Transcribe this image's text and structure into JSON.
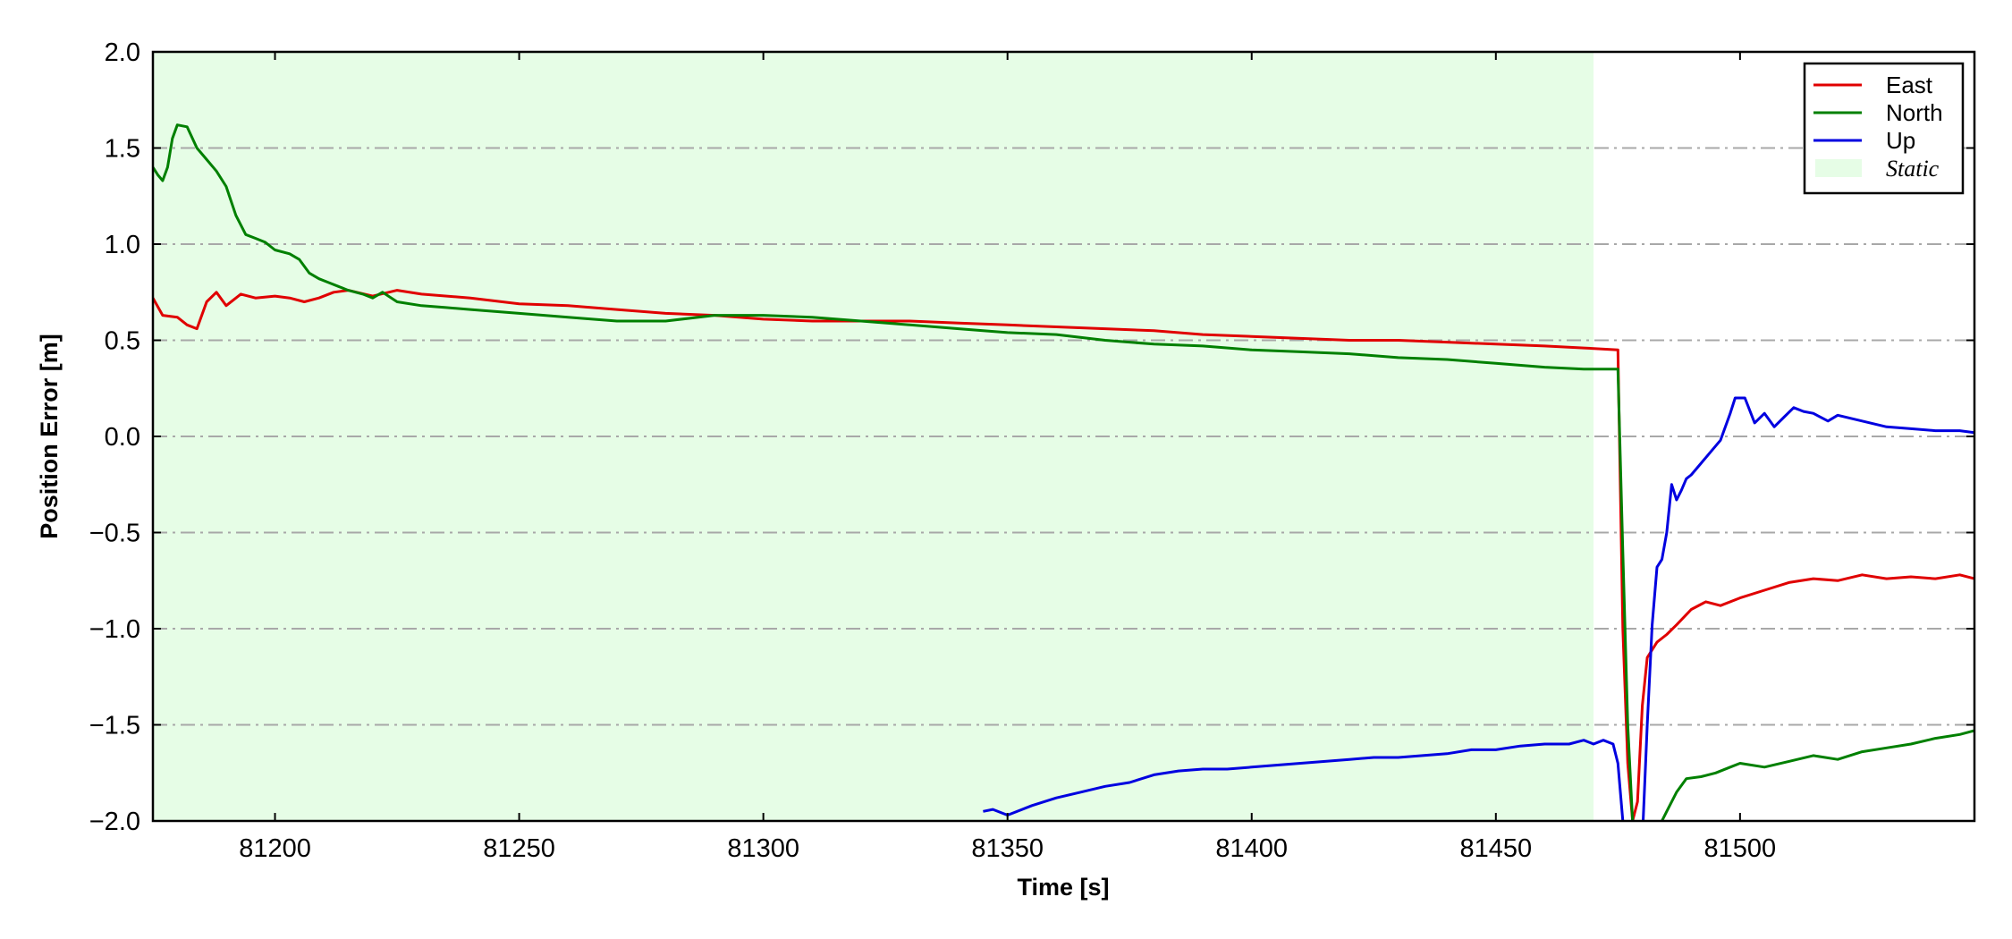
{
  "chart_data": {
    "type": "line",
    "xlabel": "Time [s]",
    "ylabel": "Position Error [m]",
    "xlim": [
      81175,
      81548
    ],
    "ylim": [
      -2.0,
      2.0
    ],
    "x_ticks": [
      81200,
      81250,
      81300,
      81350,
      81400,
      81450,
      81500
    ],
    "x_tick_labels": [
      "81200",
      "81250",
      "81300",
      "81350",
      "81400",
      "81450",
      "81500"
    ],
    "y_ticks": [
      2.0,
      1.5,
      1.0,
      0.5,
      0.0,
      -0.5,
      -1.0,
      -1.5,
      -2.0
    ],
    "y_tick_labels": [
      "2.0",
      "1.5",
      "1.0",
      "0.5",
      "0.0",
      "−0.5",
      "−1.0",
      "−1.5",
      "−2.0"
    ],
    "grid": "horizontal dash-dot",
    "legend_position": "top-right",
    "static_region": {
      "label": "Static",
      "x_start": 81175,
      "x_end": 81470,
      "color": "#e6fde6"
    },
    "series": [
      {
        "name": "East",
        "color": "#e00000",
        "x": [
          81175,
          81177,
          81180,
          81182,
          81184,
          81186,
          81188,
          81190,
          81193,
          81196,
          81200,
          81203,
          81206,
          81209,
          81212,
          81215,
          81220,
          81225,
          81230,
          81240,
          81250,
          81260,
          81270,
          81280,
          81290,
          81300,
          81310,
          81320,
          81330,
          81340,
          81350,
          81360,
          81370,
          81380,
          81390,
          81400,
          81410,
          81420,
          81430,
          81440,
          81450,
          81460,
          81468,
          81475,
          81476,
          81477,
          81478,
          81479,
          81480,
          81481,
          81483,
          81485,
          81487,
          81490,
          81493,
          81496,
          81500,
          81505,
          81510,
          81515,
          81520,
          81525,
          81530,
          81535,
          81540,
          81545,
          81548
        ],
        "y": [
          0.72,
          0.63,
          0.62,
          0.58,
          0.56,
          0.7,
          0.75,
          0.68,
          0.74,
          0.72,
          0.73,
          0.72,
          0.7,
          0.72,
          0.75,
          0.76,
          0.73,
          0.76,
          0.74,
          0.72,
          0.69,
          0.68,
          0.66,
          0.64,
          0.63,
          0.61,
          0.6,
          0.6,
          0.6,
          0.59,
          0.58,
          0.57,
          0.56,
          0.55,
          0.53,
          0.52,
          0.51,
          0.5,
          0.5,
          0.49,
          0.48,
          0.47,
          0.46,
          0.45,
          -1.0,
          -1.7,
          -2.0,
          -1.9,
          -1.4,
          -1.15,
          -1.07,
          -1.03,
          -0.98,
          -0.9,
          -0.86,
          -0.88,
          -0.84,
          -0.8,
          -0.76,
          -0.74,
          -0.75,
          -0.72,
          -0.74,
          -0.73,
          -0.74,
          -0.72,
          -0.74
        ]
      },
      {
        "name": "North",
        "color": "#008000",
        "x": [
          81175,
          81176,
          81177,
          81178,
          81179,
          81180,
          81182,
          81184,
          81186,
          81188,
          81190,
          81192,
          81194,
          81196,
          81198,
          81200,
          81203,
          81205,
          81207,
          81209,
          81211,
          81213,
          81215,
          81218,
          81220,
          81222,
          81225,
          81230,
          81235,
          81240,
          81250,
          81260,
          81270,
          81280,
          81290,
          81300,
          81310,
          81320,
          81330,
          81340,
          81350,
          81360,
          81370,
          81380,
          81390,
          81400,
          81410,
          81420,
          81430,
          81440,
          81450,
          81460,
          81468,
          81475,
          81476,
          81477,
          81478,
          81479,
          81480,
          81482,
          81485,
          81487,
          81489,
          81492,
          81495,
          81498,
          81500,
          81505,
          81510,
          81515,
          81520,
          81525,
          81530,
          81535,
          81540,
          81545,
          81548
        ],
        "y": [
          1.4,
          1.36,
          1.33,
          1.4,
          1.55,
          1.62,
          1.61,
          1.5,
          1.44,
          1.38,
          1.3,
          1.15,
          1.05,
          1.03,
          1.01,
          0.97,
          0.95,
          0.92,
          0.85,
          0.82,
          0.8,
          0.78,
          0.76,
          0.74,
          0.72,
          0.75,
          0.7,
          0.68,
          0.67,
          0.66,
          0.64,
          0.62,
          0.6,
          0.6,
          0.63,
          0.63,
          0.62,
          0.6,
          0.58,
          0.56,
          0.54,
          0.53,
          0.5,
          0.48,
          0.47,
          0.45,
          0.44,
          0.43,
          0.41,
          0.4,
          0.38,
          0.36,
          0.35,
          0.35,
          -0.6,
          -1.5,
          -2.0,
          -2.1,
          -2.2,
          -2.1,
          -1.95,
          -1.85,
          -1.78,
          -1.77,
          -1.75,
          -1.72,
          -1.7,
          -1.72,
          -1.69,
          -1.66,
          -1.68,
          -1.64,
          -1.62,
          -1.6,
          -1.57,
          -1.55,
          -1.53
        ]
      },
      {
        "name": "Up",
        "color": "#0000e0",
        "x": [
          81345,
          81347,
          81350,
          81355,
          81360,
          81365,
          81370,
          81375,
          81380,
          81385,
          81390,
          81395,
          81400,
          81405,
          81410,
          81415,
          81420,
          81425,
          81430,
          81435,
          81440,
          81445,
          81450,
          81455,
          81460,
          81465,
          81468,
          81470,
          81472,
          81474,
          81475,
          81476,
          81477,
          81478,
          81480,
          81481,
          81482,
          81483,
          81484,
          81485,
          81486,
          81487,
          81488,
          81489,
          81490,
          81492,
          81494,
          81496,
          81498,
          81499,
          81501,
          81503,
          81505,
          81507,
          81509,
          81511,
          81513,
          81515,
          81518,
          81520,
          81525,
          81530,
          81535,
          81540,
          81545,
          81548
        ],
        "y": [
          -1.95,
          -1.94,
          -1.97,
          -1.92,
          -1.88,
          -1.85,
          -1.82,
          -1.8,
          -1.76,
          -1.74,
          -1.73,
          -1.73,
          -1.72,
          -1.71,
          -1.7,
          -1.69,
          -1.68,
          -1.67,
          -1.67,
          -1.66,
          -1.65,
          -1.63,
          -1.63,
          -1.61,
          -1.6,
          -1.6,
          -1.58,
          -1.6,
          -1.58,
          -1.6,
          -1.7,
          -2.0,
          -2.2,
          -2.4,
          -2.1,
          -1.5,
          -0.98,
          -0.68,
          -0.64,
          -0.5,
          -0.25,
          -0.33,
          -0.28,
          -0.22,
          -0.2,
          -0.14,
          -0.08,
          -0.02,
          0.12,
          0.2,
          0.2,
          0.07,
          0.12,
          0.05,
          0.1,
          0.15,
          0.13,
          0.12,
          0.08,
          0.11,
          0.08,
          0.05,
          0.04,
          0.03,
          0.03,
          0.02
        ]
      }
    ]
  }
}
